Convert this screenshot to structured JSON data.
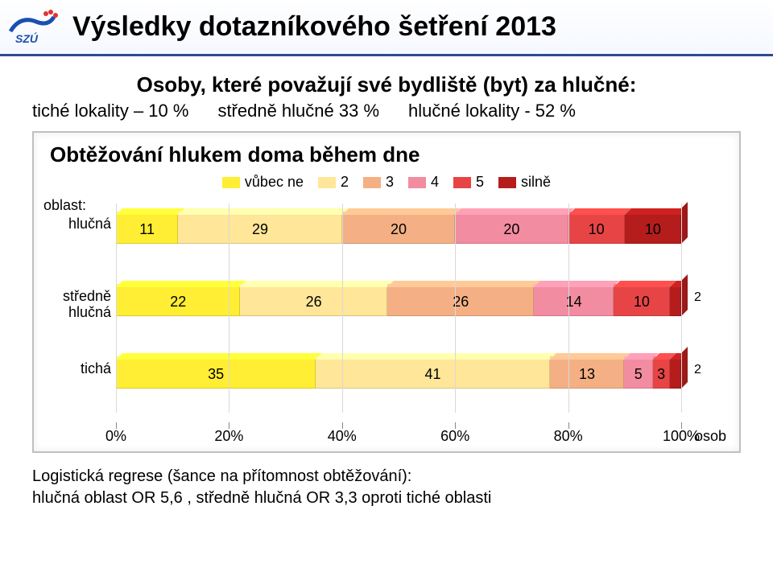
{
  "header": {
    "title": "Výsledky dotazníkového šetření 2013",
    "logo_accent": "#1a4fb0",
    "logo_accent2": "#e53030"
  },
  "subtitle": "Osoby, které považují své bydliště (byt) za hlučné:",
  "stats": {
    "quiet": "tiché lokality – 10 %",
    "medium": "středně hlučné 33 %",
    "loud": "hlučné lokality - 52 %"
  },
  "chart": {
    "title": "Obtěžování hlukem doma během dne",
    "type": "stacked-bar-horizontal",
    "legend_items": [
      {
        "label": "vůbec ne",
        "color": "#ffee33"
      },
      {
        "label": "2",
        "color": "#ffe699"
      },
      {
        "label": "3",
        "color": "#f4b084"
      },
      {
        "label": "4",
        "color": "#f28ca0"
      },
      {
        "label": "5",
        "color": "#e74545"
      },
      {
        "label": "silně",
        "color": "#b51d1d"
      }
    ],
    "axis_label": "oblast:",
    "x_unit": "osob",
    "x_ticks": [
      "0%",
      "20%",
      "40%",
      "60%",
      "80%",
      "100%"
    ],
    "rows": [
      {
        "label": "hlučná",
        "segments": [
          {
            "value": 11,
            "color": "#ffee33"
          },
          {
            "value": 29,
            "color": "#ffe699"
          },
          {
            "value": 20,
            "color": "#f4b084"
          },
          {
            "value": 20,
            "color": "#f28ca0"
          },
          {
            "value": 10,
            "color": "#e74545"
          },
          {
            "value": 10,
            "color": "#b51d1d"
          }
        ],
        "total": 100
      },
      {
        "label": "středně hlučná",
        "segments": [
          {
            "value": 22,
            "color": "#ffee33"
          },
          {
            "value": 26,
            "color": "#ffe699"
          },
          {
            "value": 26,
            "color": "#f4b084"
          },
          {
            "value": 14,
            "color": "#f28ca0"
          },
          {
            "value": 10,
            "color": "#e74545"
          },
          {
            "value": 2,
            "color": "#b51d1d",
            "label_outside": true
          }
        ],
        "total": 100
      },
      {
        "label": "tichá",
        "segments": [
          {
            "value": 35,
            "color": "#ffee33"
          },
          {
            "value": 41,
            "color": "#ffe699"
          },
          {
            "value": 13,
            "color": "#f4b084"
          },
          {
            "value": 5,
            "color": "#f28ca0"
          },
          {
            "value": 3,
            "color": "#e74545"
          },
          {
            "value": 2,
            "color": "#b51d1d",
            "label_outside": true
          }
        ],
        "total": 99
      }
    ],
    "background_color": "#ffffff",
    "grid_color": "#d9d9d9",
    "row_positions": [
      10,
      100,
      190
    ],
    "title_fontsize": 26,
    "label_fontsize": 18
  },
  "footer": {
    "line1": "Logistická regrese (šance na přítomnost obtěžování):",
    "line2": "hlučná oblast OR 5,6 , středně hlučná OR 3,3 oproti tiché oblasti"
  }
}
